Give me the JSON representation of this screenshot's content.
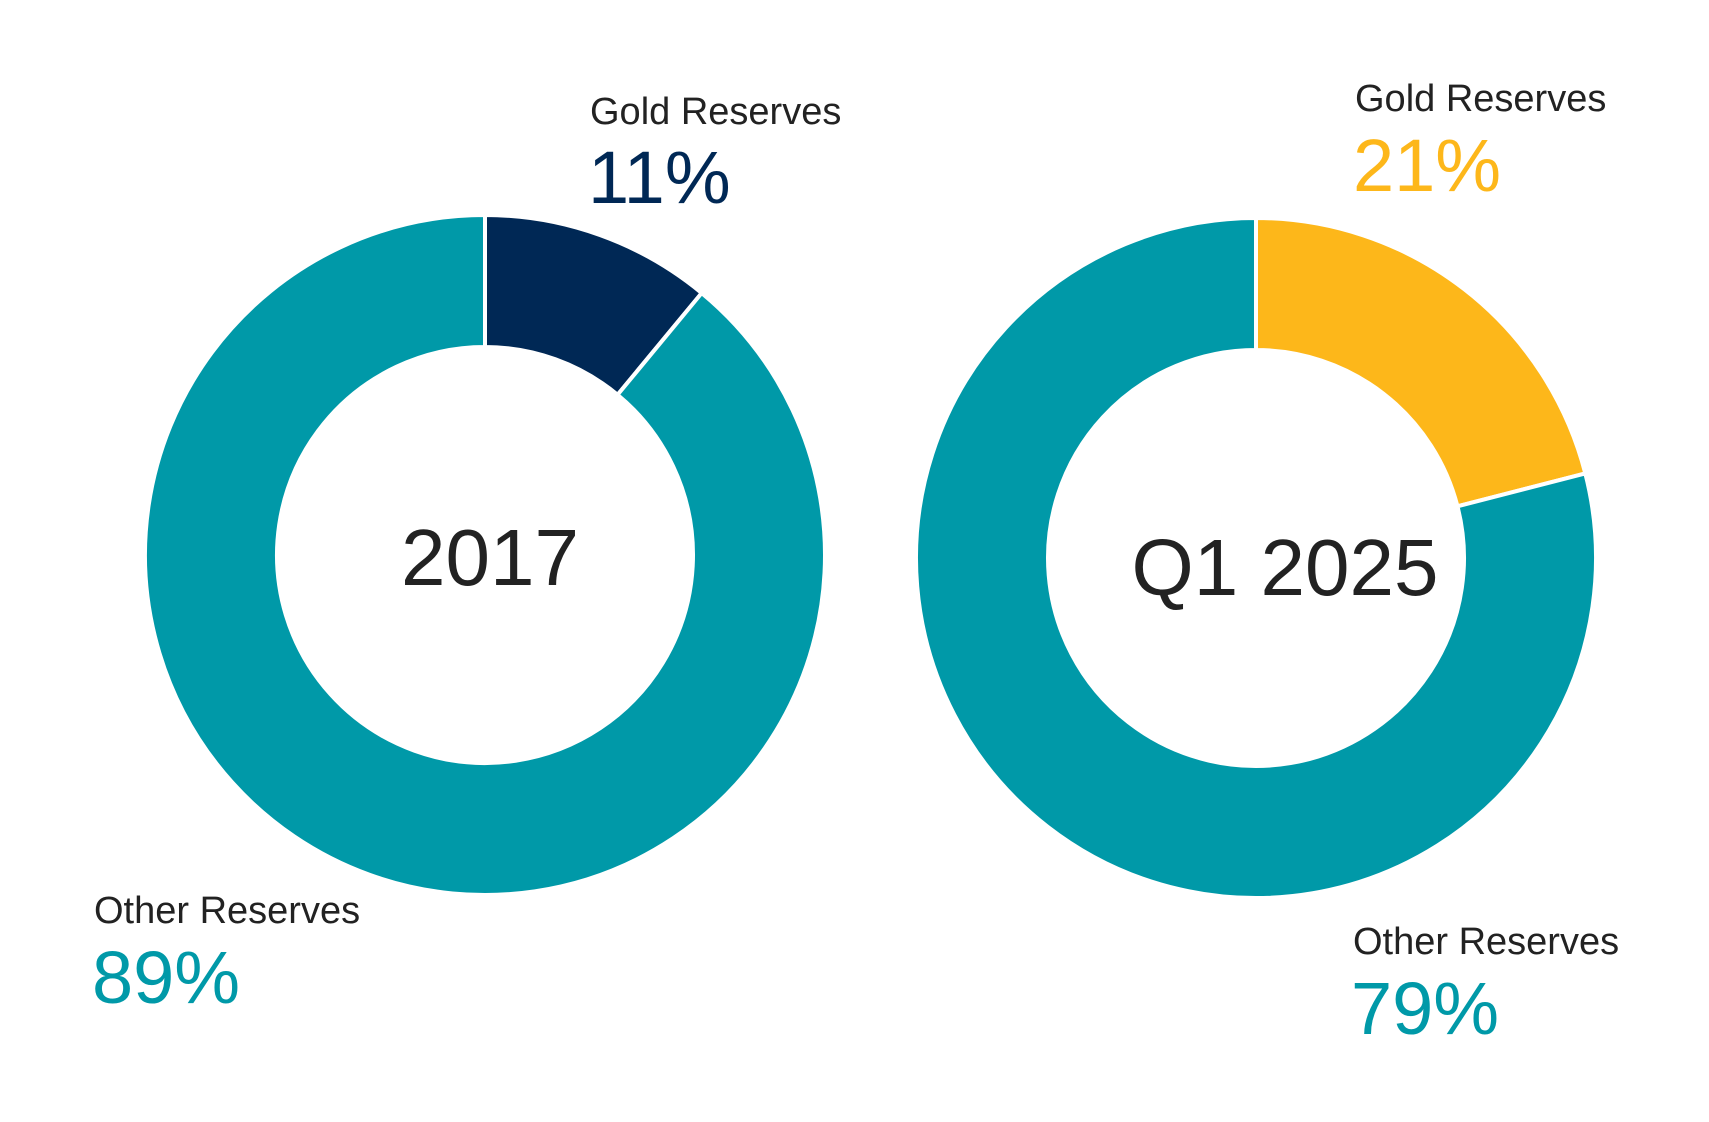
{
  "chart_data": [
    {
      "type": "pie",
      "center_label": "2017",
      "slices": [
        {
          "label": "Gold Reserves",
          "value": 11,
          "value_text": "11%",
          "color": "#002855"
        },
        {
          "label": "Other Reserves",
          "value": 89,
          "value_text": "89%",
          "color": "#0099A8"
        }
      ]
    },
    {
      "type": "pie",
      "center_label": "Q1 2025",
      "slices": [
        {
          "label": "Gold Reserves",
          "value": 21,
          "value_text": "21%",
          "color": "#FDB71A"
        },
        {
          "label": "Other Reserves",
          "value": 79,
          "value_text": "79%",
          "color": "#0099A8"
        }
      ]
    }
  ],
  "colors": {
    "gold_2017": "#002855",
    "gold_2025": "#FDB71A",
    "other": "#0099A8",
    "text": "#222222"
  }
}
